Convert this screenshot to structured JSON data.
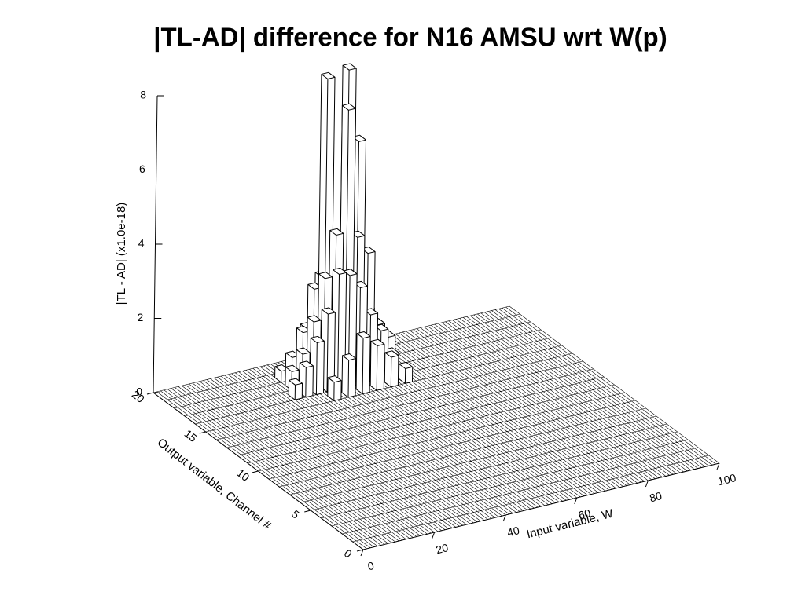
{
  "chart_data": {
    "type": "bar3d",
    "title": "|TL-AD| difference for N16 AMSU wrt W(p)",
    "xlabel": "Input variable, W",
    "ylabel": "Output variable, Channel #",
    "zlabel": "|TL - AD| (x1.0e-18)",
    "xlim": [
      0,
      100
    ],
    "xticks": [
      0,
      20,
      40,
      60,
      80,
      100
    ],
    "ylim": [
      0,
      20
    ],
    "yticks": [
      0,
      5,
      10,
      15,
      20
    ],
    "zlim": [
      0,
      8
    ],
    "zticks": [
      0,
      2,
      4,
      6,
      8
    ],
    "x": [
      30,
      33,
      36,
      39,
      42,
      45,
      48,
      51,
      54,
      57,
      40,
      44,
      48,
      52,
      56,
      60,
      30,
      33,
      36,
      39,
      42,
      45,
      48,
      51,
      54,
      57,
      28,
      31,
      34,
      37,
      40,
      43,
      46,
      49,
      52,
      55,
      36,
      40,
      44,
      48,
      52,
      56
    ],
    "y": [
      18,
      18,
      18,
      18,
      18,
      18,
      18,
      18,
      18,
      18,
      19,
      19,
      19,
      19,
      19,
      19,
      17,
      17,
      17,
      17,
      17,
      17,
      17,
      17,
      17,
      17,
      16,
      16,
      16,
      16,
      16,
      16,
      16,
      16,
      16,
      16,
      15,
      15,
      15,
      15,
      15,
      15
    ],
    "values": [
      0.3,
      0.6,
      1.2,
      2.3,
      7.9,
      3.6,
      8.0,
      6.0,
      1.4,
      0.4,
      1.0,
      2.3,
      3.0,
      1.9,
      0.9,
      0.5,
      0.5,
      0.9,
      1.7,
      2.8,
      3.9,
      7.2,
      3.7,
      3.2,
      1.2,
      0.8,
      0.4,
      0.8,
      1.4,
      2.1,
      3.1,
      3.0,
      2.6,
      1.8,
      1.3,
      0.6,
      0.5,
      1.0,
      1.5,
      1.2,
      0.8,
      0.4
    ]
  }
}
